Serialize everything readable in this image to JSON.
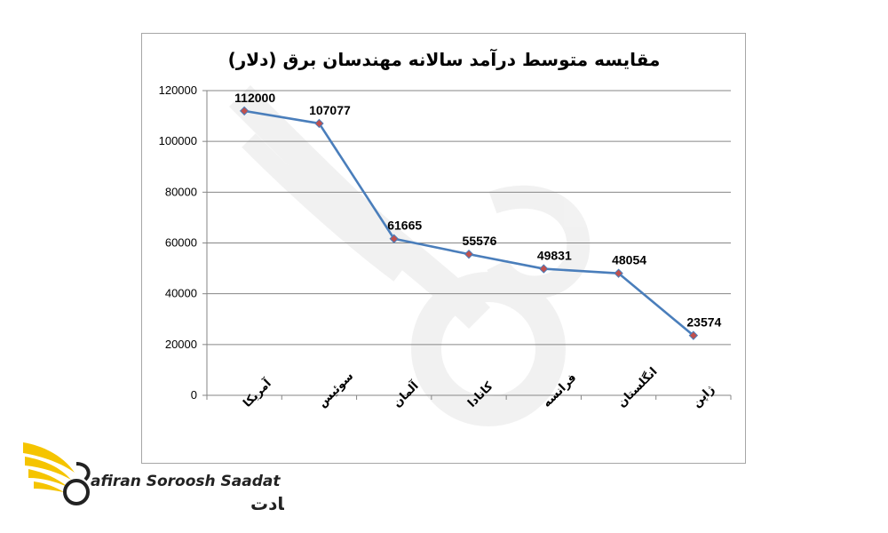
{
  "chart_data": {
    "type": "line",
    "title": "مقایسه متوسط درآمد سالانه مهندسان برق (دلار)",
    "categories": [
      "آمریکا",
      "سوئیس",
      "آلمان",
      "کانادا",
      "فرانسه",
      "انگلستان",
      "ژاپن"
    ],
    "series": [
      {
        "values": [
          112000,
          107077,
          61665,
          55576,
          49831,
          48054,
          23574
        ]
      }
    ],
    "data_labels": [
      "112000",
      "107077",
      "61665",
      "55576",
      "49831",
      "48054",
      "23574"
    ],
    "ylim": [
      0,
      120000
    ],
    "yticks": [
      "0",
      "20000",
      "40000",
      "60000",
      "80000",
      "100000",
      "120000"
    ],
    "grid": true,
    "legend": "none",
    "line_color": "#4a7ebb",
    "marker_color": "#c0504d"
  },
  "logo": {
    "name_en": "afiran Soroosh Saadat",
    "name_fa": "سفیران سروش سعادت",
    "colors": {
      "wing": "#f5c400",
      "text": "#222222"
    }
  }
}
